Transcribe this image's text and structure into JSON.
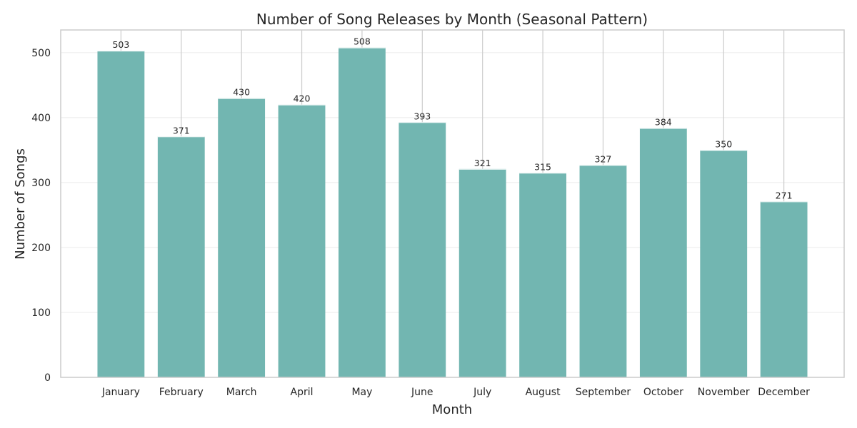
{
  "chart_data": {
    "type": "bar",
    "title": "Number of Song Releases by Month (Seasonal Pattern)",
    "xlabel": "Month",
    "ylabel": "Number of Songs",
    "categories": [
      "January",
      "February",
      "March",
      "April",
      "May",
      "June",
      "July",
      "August",
      "September",
      "October",
      "November",
      "December"
    ],
    "values": [
      503,
      371,
      430,
      420,
      508,
      393,
      321,
      315,
      327,
      384,
      350,
      271
    ],
    "ylim": [
      0,
      535
    ],
    "yticks": [
      0,
      100,
      200,
      300,
      400,
      500
    ],
    "grid": true,
    "legend": "none",
    "bar_color": "#72b6b1",
    "grid_color": "#cccccc",
    "axis_color": "#cccccc"
  }
}
